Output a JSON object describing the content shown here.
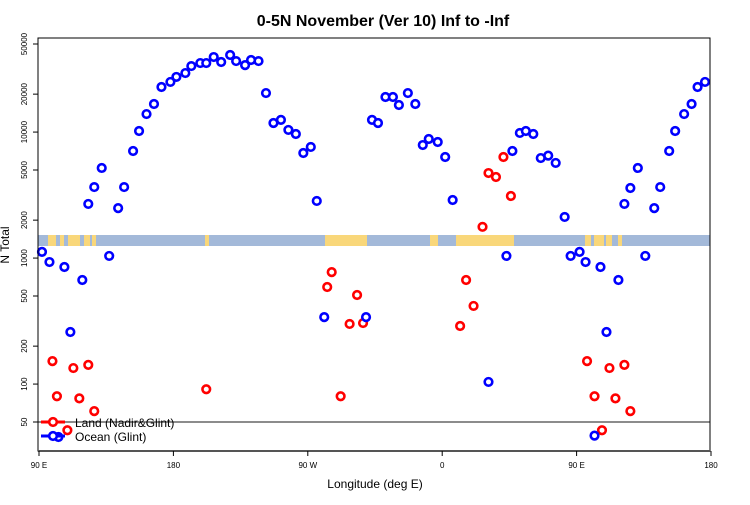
{
  "chart_data": {
    "type": "scatter",
    "title": "0-5N November (Ver 10)   Inf to -Inf",
    "xlabel": "Longitude (deg E)",
    "ylabel": "N Total",
    "y_scale": "log",
    "xlim": [
      90,
      540
    ],
    "ylim": [
      29,
      52000
    ],
    "x_ticks": [
      {
        "value": 90,
        "label": "90 E"
      },
      {
        "value": 180,
        "label": "180"
      },
      {
        "value": 270,
        "label": "90 W"
      },
      {
        "value": 360,
        "label": "0"
      },
      {
        "value": 450,
        "label": "90 E"
      },
      {
        "value": 540,
        "label": "180"
      }
    ],
    "y_ticks": [
      {
        "value": 50,
        "label": "50"
      },
      {
        "value": 100,
        "label": "100"
      },
      {
        "value": 200,
        "label": "200"
      },
      {
        "value": 500,
        "label": "500"
      },
      {
        "value": 1000,
        "label": "1000"
      },
      {
        "value": 2000,
        "label": "2000"
      },
      {
        "value": 5000,
        "label": "5000"
      },
      {
        "value": 10000,
        "label": "10000"
      },
      {
        "value": 20000,
        "label": "20000"
      },
      {
        "value": 50000,
        "label": "50000"
      }
    ],
    "reference_line": 50,
    "grid": false,
    "legend": {
      "position": "bottom-left"
    },
    "series": [
      {
        "name": "Land (Nadir&Glint)",
        "color": "#ff0000",
        "points": [
          [
            99,
            152
          ],
          [
            102,
            80
          ],
          [
            109,
            43
          ],
          [
            113,
            134
          ],
          [
            117,
            77
          ],
          [
            123,
            142
          ],
          [
            127,
            61
          ],
          [
            202,
            91
          ],
          [
            283,
            589
          ],
          [
            286,
            774
          ],
          [
            292,
            80
          ],
          [
            298,
            300
          ],
          [
            303,
            509
          ],
          [
            307,
            305
          ],
          [
            372,
            289
          ],
          [
            376,
            670
          ],
          [
            381,
            417
          ],
          [
            387,
            1770
          ],
          [
            391,
            4730
          ],
          [
            396,
            4400
          ],
          [
            401,
            6340
          ],
          [
            406,
            3110
          ],
          [
            457,
            152
          ],
          [
            462,
            80
          ],
          [
            467,
            43
          ],
          [
            472,
            134
          ],
          [
            476,
            77
          ],
          [
            482,
            142
          ],
          [
            486,
            61
          ]
        ]
      },
      {
        "name": "Ocean (Glint)",
        "color": "#0000ff",
        "points": [
          [
            92,
            1120
          ],
          [
            97,
            930
          ],
          [
            103,
            38
          ],
          [
            107,
            850
          ],
          [
            111,
            259
          ],
          [
            119,
            670
          ],
          [
            123,
            2690
          ],
          [
            127,
            3660
          ],
          [
            132,
            5190
          ],
          [
            137,
            1040
          ],
          [
            143,
            2490
          ],
          [
            147,
            3660
          ],
          [
            153,
            7080
          ],
          [
            157,
            10200
          ],
          [
            162,
            13900
          ],
          [
            167,
            16700
          ],
          [
            172,
            22800
          ],
          [
            178,
            25000
          ],
          [
            182,
            27400
          ],
          [
            188,
            29400
          ],
          [
            192,
            33400
          ],
          [
            198,
            35300
          ],
          [
            202,
            35300
          ],
          [
            207,
            39400
          ],
          [
            212,
            36000
          ],
          [
            218,
            40900
          ],
          [
            222,
            36600
          ],
          [
            228,
            34000
          ],
          [
            232,
            37300
          ],
          [
            237,
            36600
          ],
          [
            242,
            20400
          ],
          [
            247,
            11800
          ],
          [
            252,
            12500
          ],
          [
            257,
            10400
          ],
          [
            262,
            9660
          ],
          [
            267,
            6820
          ],
          [
            272,
            7620
          ],
          [
            276,
            2840
          ],
          [
            281,
            340
          ],
          [
            309,
            340
          ],
          [
            313,
            12500
          ],
          [
            317,
            11800
          ],
          [
            322,
            18970
          ],
          [
            327,
            18970
          ],
          [
            331,
            16400
          ],
          [
            337,
            20400
          ],
          [
            342,
            16700
          ],
          [
            347,
            7890
          ],
          [
            351,
            8810
          ],
          [
            357,
            8340
          ],
          [
            362,
            6340
          ],
          [
            367,
            2890
          ],
          [
            391,
            104
          ],
          [
            403,
            1040
          ],
          [
            407,
            7080
          ],
          [
            412,
            9840
          ],
          [
            416,
            10200
          ],
          [
            421,
            9660
          ],
          [
            426,
            6220
          ],
          [
            431,
            6500
          ],
          [
            436,
            5690
          ],
          [
            442,
            2120
          ],
          [
            446,
            1040
          ],
          [
            452,
            1120
          ],
          [
            456,
            930
          ],
          [
            462,
            39
          ],
          [
            466,
            850
          ],
          [
            470,
            259
          ],
          [
            478,
            670
          ],
          [
            482,
            2690
          ],
          [
            486,
            3600
          ],
          [
            491,
            5190
          ],
          [
            496,
            1040
          ],
          [
            502,
            2490
          ],
          [
            506,
            3660
          ],
          [
            512,
            7080
          ],
          [
            516,
            10200
          ],
          [
            522,
            13900
          ],
          [
            527,
            16700
          ],
          [
            531,
            22800
          ],
          [
            536,
            25000
          ]
        ]
      }
    ],
    "map_strip": {
      "ocean_color": "#a3b9d9",
      "land_color": "#f9d77a"
    }
  }
}
